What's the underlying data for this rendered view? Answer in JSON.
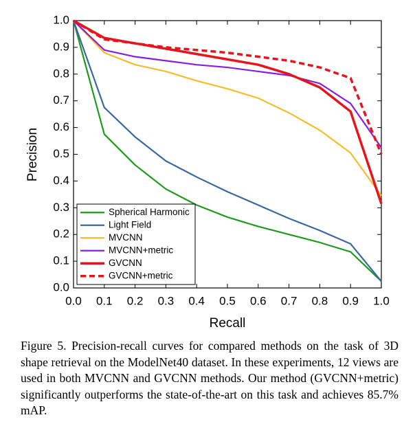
{
  "chart_data": {
    "type": "line",
    "x_label": "Recall",
    "y_label": "Precision",
    "x": [
      0,
      0.1,
      0.2,
      0.3,
      0.4,
      0.5,
      0.6,
      0.7,
      0.8,
      0.9,
      1.0
    ],
    "series": [
      {
        "name": "Spherical Harmonic",
        "color": "#1e9a1e",
        "values": [
          1.0,
          0.575,
          0.46,
          0.37,
          0.31,
          0.265,
          0.23,
          0.2,
          0.17,
          0.135,
          0.025
        ]
      },
      {
        "name": "Light Field",
        "color": "#3a67a0",
        "values": [
          1.0,
          0.675,
          0.565,
          0.475,
          0.415,
          0.36,
          0.31,
          0.26,
          0.215,
          0.165,
          0.025
        ]
      },
      {
        "name": "MVCNN",
        "color": "#f5bd2e",
        "values": [
          1.0,
          0.88,
          0.835,
          0.81,
          0.775,
          0.745,
          0.71,
          0.655,
          0.59,
          0.505,
          0.345
        ]
      },
      {
        "name": "MVCNN+metric",
        "color": "#8a1ee0",
        "values": [
          1.0,
          0.89,
          0.865,
          0.85,
          0.835,
          0.825,
          0.81,
          0.795,
          0.765,
          0.69,
          0.525
        ]
      },
      {
        "name": "GVCNN",
        "color": "#e8141c",
        "values": [
          1.0,
          0.935,
          0.915,
          0.895,
          0.875,
          0.855,
          0.835,
          0.8,
          0.75,
          0.66,
          0.315
        ]
      },
      {
        "name": "GVCNN+metric",
        "color": "#e8141c",
        "dashed": true,
        "values": [
          1.0,
          0.93,
          0.915,
          0.9,
          0.89,
          0.88,
          0.865,
          0.85,
          0.825,
          0.785,
          0.5
        ]
      }
    ],
    "xlim": [
      0,
      1
    ],
    "ylim": [
      0,
      1
    ],
    "xticks": [
      {
        "value": 0,
        "label": "0.0"
      },
      0.1,
      0.2,
      0.3,
      0.4,
      0.5,
      0.6,
      0.7,
      0.8,
      0.9,
      {
        "value": 1,
        "label": "1.0"
      }
    ],
    "yticks": [
      {
        "value": 0,
        "label": "0.0"
      },
      0.1,
      0.2,
      0.3,
      0.4,
      0.5,
      0.6,
      0.7,
      0.8,
      0.9,
      {
        "value": 1,
        "label": "1.0"
      }
    ],
    "legend": "lower left",
    "caption": "Figure 5. Precision-recall curves for compared methods on the task of 3D shape retrieval on the ModelNet40 dataset. In these experiments, 12 views are used in both MVCNN and GVCNN methods. Our method (GVCNN+metric) significantly outperforms the state-of-the-art on this task and achieves 85.7% mAP."
  }
}
